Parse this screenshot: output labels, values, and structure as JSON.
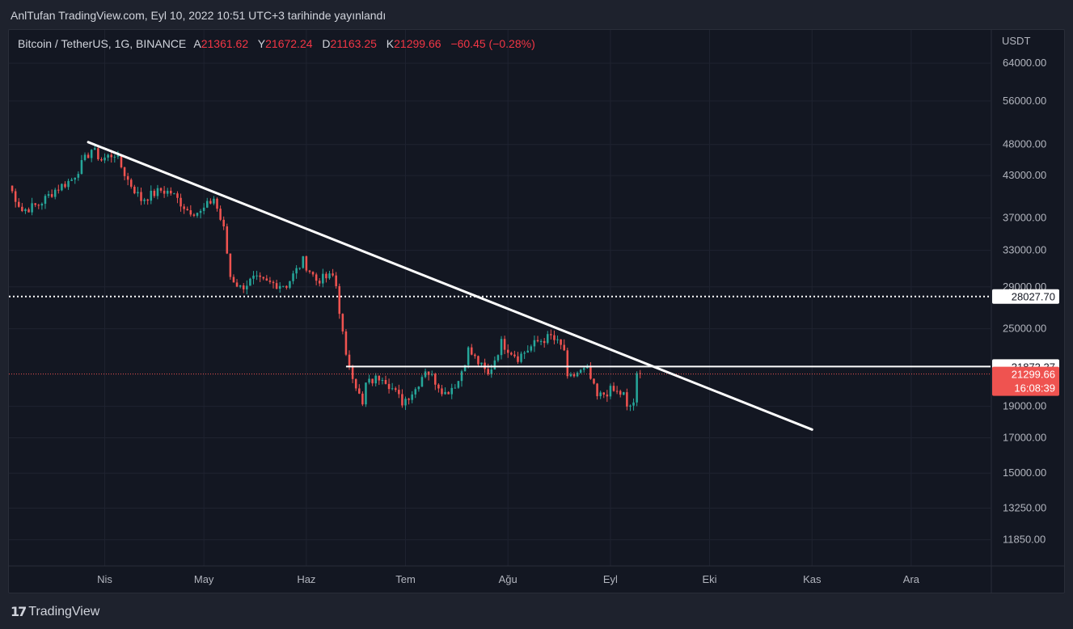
{
  "header": {
    "published": "AnlTufan TradingView.com, Eyl 10, 2022 10:51 UTC+3 tarihinde yayınlandı"
  },
  "legend": {
    "symbol": "Bitcoin / TetherUS, 1G, BINANCE",
    "open_label": "A",
    "open": "21361.62",
    "high_label": "Y",
    "high": "21672.24",
    "low_label": "D",
    "low": "21163.25",
    "close_label": "K",
    "close": "21299.66",
    "change": "−60.45 (−0.28%)"
  },
  "footer": {
    "brand": "TradingView",
    "logo_mark": "17"
  },
  "colors": {
    "background": "#131722",
    "up": "#26a69a",
    "down": "#ef5350",
    "grid": "#1f2330",
    "text": "#b2b5be",
    "lines": "#ffffff"
  },
  "chart_data": {
    "type": "candlestick",
    "currency_label": "USDT",
    "scale": "log",
    "ylim": [
      10800,
      72000
    ],
    "y_ticks": [
      {
        "value": 64000,
        "label": "64000.00"
      },
      {
        "value": 56000,
        "label": "56000.00"
      },
      {
        "value": 48000,
        "label": "48000.00"
      },
      {
        "value": 43000,
        "label": "43000.00"
      },
      {
        "value": 37000,
        "label": "37000.00"
      },
      {
        "value": 33000,
        "label": "33000.00"
      },
      {
        "value": 29000,
        "label": "29000.00"
      },
      {
        "value": 25000,
        "label": "25000.00"
      },
      {
        "value": 19000,
        "label": "19000.00"
      },
      {
        "value": 17000,
        "label": "17000.00"
      },
      {
        "value": 15000,
        "label": "15000.00"
      },
      {
        "value": 13250,
        "label": "13250.00"
      },
      {
        "value": 11850,
        "label": "11850.00"
      }
    ],
    "x_ticks": [
      {
        "date": "2022-04-01",
        "label": "Nis"
      },
      {
        "date": "2022-05-01",
        "label": "May"
      },
      {
        "date": "2022-06-01",
        "label": "Haz"
      },
      {
        "date": "2022-07-01",
        "label": "Tem"
      },
      {
        "date": "2022-08-01",
        "label": "Ağu"
      },
      {
        "date": "2022-09-01",
        "label": "Eyl"
      },
      {
        "date": "2022-10-01",
        "label": "Eki"
      },
      {
        "date": "2022-11-01",
        "label": "Kas"
      },
      {
        "date": "2022-12-01",
        "label": "Ara"
      }
    ],
    "x_range": [
      "2022-03-03",
      "2022-12-25"
    ],
    "key_points": [
      {
        "date": "2022-03-03",
        "close": 41500
      },
      {
        "date": "2022-03-07",
        "close": 38000
      },
      {
        "date": "2022-03-12",
        "close": 38800
      },
      {
        "date": "2022-03-17",
        "close": 40900
      },
      {
        "date": "2022-03-22",
        "close": 42400
      },
      {
        "date": "2022-03-28",
        "close": 47200
      },
      {
        "date": "2022-03-31",
        "close": 45500
      },
      {
        "date": "2022-04-04",
        "close": 46500
      },
      {
        "date": "2022-04-08",
        "close": 42300
      },
      {
        "date": "2022-04-12",
        "close": 39500
      },
      {
        "date": "2022-04-18",
        "close": 40800
      },
      {
        "date": "2022-04-21",
        "close": 40500
      },
      {
        "date": "2022-04-26",
        "close": 38100
      },
      {
        "date": "2022-04-30",
        "close": 37700
      },
      {
        "date": "2022-05-04",
        "close": 39700
      },
      {
        "date": "2022-05-07",
        "close": 35500
      },
      {
        "date": "2022-05-09",
        "close": 30100
      },
      {
        "date": "2022-05-12",
        "close": 28900
      },
      {
        "date": "2022-05-16",
        "close": 29800
      },
      {
        "date": "2022-05-20",
        "close": 29400
      },
      {
        "date": "2022-05-26",
        "close": 29200
      },
      {
        "date": "2022-05-31",
        "close": 31800
      },
      {
        "date": "2022-06-04",
        "close": 29700
      },
      {
        "date": "2022-06-09",
        "close": 30100
      },
      {
        "date": "2022-06-10",
        "close": 29100
      },
      {
        "date": "2022-06-13",
        "close": 22500
      },
      {
        "date": "2022-06-14",
        "close": 22100
      },
      {
        "date": "2022-06-18",
        "close": 19000
      },
      {
        "date": "2022-06-19",
        "close": 20550
      },
      {
        "date": "2022-06-24",
        "close": 21200
      },
      {
        "date": "2022-06-30",
        "close": 19300
      },
      {
        "date": "2022-07-04",
        "close": 20200
      },
      {
        "date": "2022-07-07",
        "close": 21700
      },
      {
        "date": "2022-07-13",
        "close": 19900
      },
      {
        "date": "2022-07-17",
        "close": 20800
      },
      {
        "date": "2022-07-20",
        "close": 23200
      },
      {
        "date": "2022-07-26",
        "close": 21200
      },
      {
        "date": "2022-07-30",
        "close": 23800
      },
      {
        "date": "2022-08-04",
        "close": 22600
      },
      {
        "date": "2022-08-10",
        "close": 23900
      },
      {
        "date": "2022-08-14",
        "close": 24300
      },
      {
        "date": "2022-08-18",
        "close": 23200
      },
      {
        "date": "2022-08-19",
        "close": 20800
      },
      {
        "date": "2022-08-22",
        "close": 21400
      },
      {
        "date": "2022-08-25",
        "close": 21600
      },
      {
        "date": "2022-08-28",
        "close": 19600
      },
      {
        "date": "2022-09-01",
        "close": 20100
      },
      {
        "date": "2022-09-05",
        "close": 19800
      },
      {
        "date": "2022-09-06",
        "close": 18800
      },
      {
        "date": "2022-09-08",
        "close": 19300
      },
      {
        "date": "2022-09-09",
        "close": 21361.62
      },
      {
        "date": "2022-09-10",
        "close": 21299.66
      }
    ],
    "overlays": {
      "trendline": {
        "from": {
          "date": "2022-03-27",
          "value": 48400
        },
        "to": {
          "date": "2022-11-01",
          "value": 17500
        },
        "color": "#ffffff"
      },
      "resistance": {
        "from_date": "2022-06-13",
        "value": 21872.27,
        "label": "21872.27"
      },
      "dotted_level": {
        "value": 28027.7,
        "label": "28027.70"
      },
      "last_price": {
        "value": 21299.66,
        "label": "21299.66",
        "countdown": "16:08:39"
      }
    }
  }
}
